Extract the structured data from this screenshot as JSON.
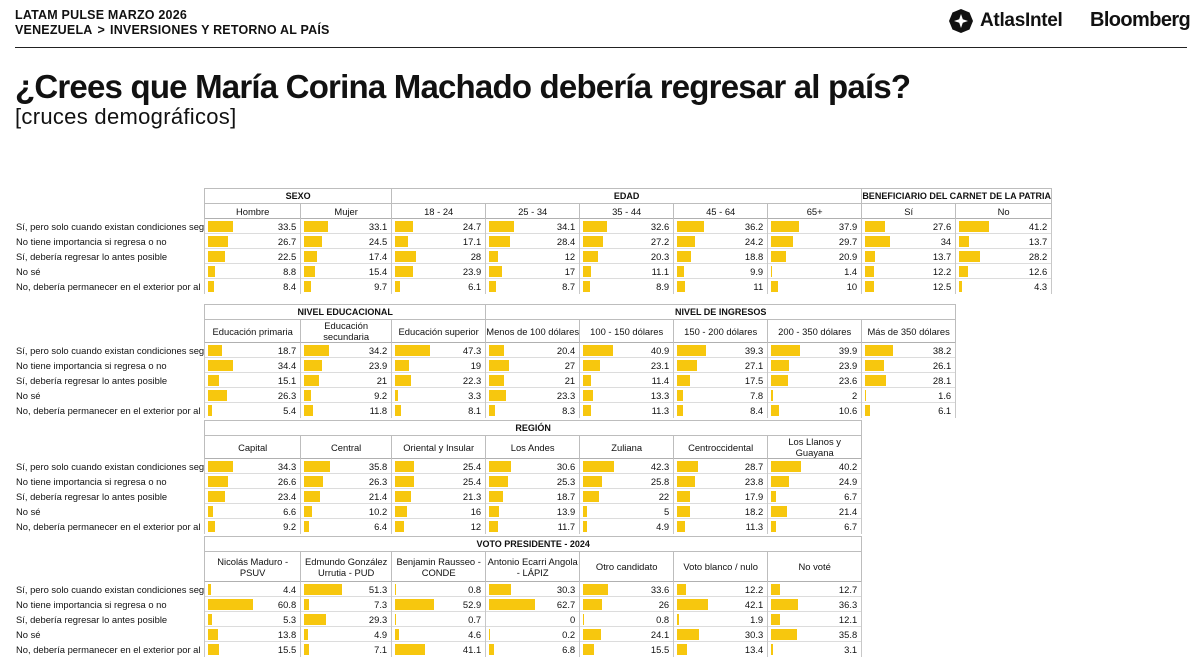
{
  "header": {
    "survey_name": "LATAM PULSE MARZO 2026",
    "breadcrumb": [
      "VENEZUELA",
      ">",
      "INVERSIONES Y RETORNO AL PAÍS"
    ],
    "logo_atlas": "AtlasIntel",
    "logo_bloomberg": "Bloomberg"
  },
  "title": "¿Crees que María Corina Machado debería regresar al país?",
  "subtitle": "[cruces demográficos]",
  "colors": {
    "bar": "#f7c70e",
    "grid": "#c8c8c8"
  },
  "chart_data": {
    "type": "table",
    "rows": [
      "Sí, pero solo cuando existan condiciones seg",
      "No tiene importancia si regresa o no",
      "Sí, debería regresar lo antes posible",
      "No sé",
      "No, debería permanecer en el exterior por al"
    ],
    "max_value": 63,
    "tables": [
      {
        "groups": [
          {
            "name": "SEXO",
            "columns": [
              {
                "label": "Hombre",
                "values": [
                  33.5,
                  26.7,
                  22.5,
                  8.8,
                  8.4
                ]
              },
              {
                "label": "Mujer",
                "values": [
                  33.1,
                  24.5,
                  17.4,
                  15.4,
                  9.7
                ]
              }
            ]
          },
          {
            "name": "EDAD",
            "columns": [
              {
                "label": "18 - 24",
                "values": [
                  24.7,
                  17.1,
                  28,
                  23.9,
                  6.1
                ]
              },
              {
                "label": "25 - 34",
                "values": [
                  34.1,
                  28.4,
                  12,
                  17,
                  8.7
                ]
              },
              {
                "label": "35 - 44",
                "values": [
                  32.6,
                  27.2,
                  20.3,
                  11.1,
                  8.9
                ]
              },
              {
                "label": "45 - 64",
                "values": [
                  36.2,
                  24.2,
                  18.8,
                  9.9,
                  11
                ]
              },
              {
                "label": "65+",
                "values": [
                  37.9,
                  29.7,
                  20.9,
                  1.4,
                  10
                ]
              }
            ]
          },
          {
            "name": "BENEFICIARIO DEL CARNET DE LA PATRIA",
            "columns": [
              {
                "label": "Sí",
                "values": [
                  27.6,
                  34,
                  13.7,
                  12.2,
                  12.5
                ]
              },
              {
                "label": "No",
                "values": [
                  41.2,
                  13.7,
                  28.2,
                  12.6,
                  4.3
                ]
              }
            ]
          }
        ]
      },
      {
        "groups": [
          {
            "name": "NIVEL EDUCACIONAL",
            "columns": [
              {
                "label": "Educación primaria",
                "values": [
                  18.7,
                  34.4,
                  15.1,
                  26.3,
                  5.4
                ]
              },
              {
                "label": "Educación secundaria",
                "values": [
                  34.2,
                  23.9,
                  21,
                  9.2,
                  11.8
                ]
              },
              {
                "label": "Educación superior",
                "values": [
                  47.3,
                  19,
                  22.3,
                  3.3,
                  8.1
                ]
              }
            ]
          },
          {
            "name": "NIVEL DE INGRESOS",
            "columns": [
              {
                "label": "Menos de 100 dólares",
                "values": [
                  20.4,
                  27,
                  21,
                  23.3,
                  8.3
                ]
              },
              {
                "label": "100 - 150 dólares",
                "values": [
                  40.9,
                  23.1,
                  11.4,
                  13.3,
                  11.3
                ]
              },
              {
                "label": "150 - 200 dólares",
                "values": [
                  39.3,
                  27.1,
                  17.5,
                  7.8,
                  8.4
                ]
              },
              {
                "label": "200 - 350 dólares",
                "values": [
                  39.9,
                  23.9,
                  23.6,
                  2,
                  10.6
                ]
              },
              {
                "label": "Más de 350 dólares",
                "values": [
                  38.2,
                  26.1,
                  28.1,
                  1.6,
                  6.1
                ]
              }
            ]
          }
        ]
      },
      {
        "groups": [
          {
            "name": "REGIÓN",
            "columns": [
              {
                "label": "Capital",
                "values": [
                  34.3,
                  26.6,
                  23.4,
                  6.6,
                  9.2
                ]
              },
              {
                "label": "Central",
                "values": [
                  35.8,
                  26.3,
                  21.4,
                  10.2,
                  6.4
                ]
              },
              {
                "label": "Oriental y Insular",
                "values": [
                  25.4,
                  25.4,
                  21.3,
                  16,
                  12
                ]
              },
              {
                "label": "Los Andes",
                "values": [
                  30.6,
                  25.3,
                  18.7,
                  13.9,
                  11.7
                ]
              },
              {
                "label": "Zuliana",
                "values": [
                  42.3,
                  25.8,
                  22,
                  5,
                  4.9
                ]
              },
              {
                "label": "Centroccidental",
                "values": [
                  28.7,
                  23.8,
                  17.9,
                  18.2,
                  11.3
                ]
              },
              {
                "label": "Los Llanos y Guayana",
                "values": [
                  40.2,
                  24.9,
                  6.7,
                  21.4,
                  6.7
                ]
              }
            ]
          }
        ]
      },
      {
        "groups": [
          {
            "name": "VOTO PRESIDENTE - 2024",
            "columns": [
              {
                "label": "Nicolás Maduro - PSUV",
                "values": [
                  4.4,
                  60.8,
                  5.3,
                  13.8,
                  15.5
                ]
              },
              {
                "label": "Edmundo González Urrutia - PUD",
                "values": [
                  51.3,
                  7.3,
                  29.3,
                  4.9,
                  7.1
                ]
              },
              {
                "label": "Benjamin Rausseo - CONDE",
                "values": [
                  0.8,
                  52.9,
                  0.7,
                  4.6,
                  41.1
                ]
              },
              {
                "label": "Antonio Ecarri Angola - LÁPIZ",
                "values": [
                  30.3,
                  62.7,
                  0,
                  0.2,
                  6.8
                ]
              },
              {
                "label": "Otro candidato",
                "values": [
                  33.6,
                  26,
                  0.8,
                  24.1,
                  15.5
                ]
              },
              {
                "label": "Voto blanco / nulo",
                "values": [
                  12.2,
                  42.1,
                  1.9,
                  30.3,
                  13.4
                ]
              },
              {
                "label": "No voté",
                "values": [
                  12.7,
                  36.3,
                  12.1,
                  35.8,
                  3.1
                ]
              }
            ]
          }
        ]
      }
    ]
  }
}
